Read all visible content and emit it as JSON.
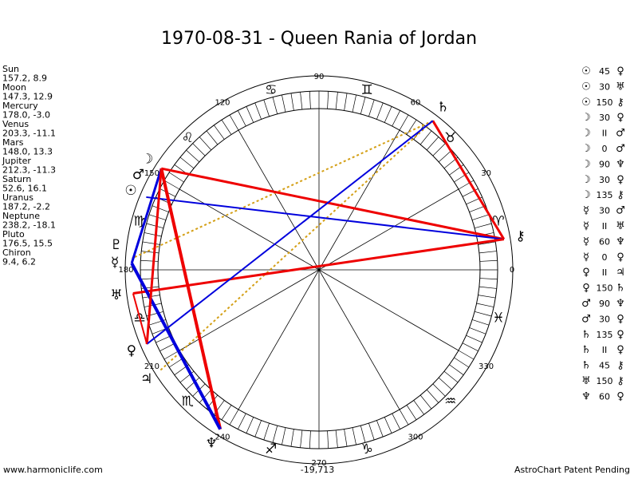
{
  "title": "1970-08-31 - Queen Rania of Jordan",
  "planets": [
    {
      "name": "Sun",
      "position": "157.2, 8.9",
      "glyph": "☉"
    },
    {
      "name": "Moon",
      "position": "147.3, 12.9",
      "glyph": "☽"
    },
    {
      "name": "Mercury",
      "position": "178.0, -3.0",
      "glyph": "☿"
    },
    {
      "name": "Venus",
      "position": "203.3, -11.1",
      "glyph": "♀"
    },
    {
      "name": "Mars",
      "position": "148.0, 13.3",
      "glyph": "♂"
    },
    {
      "name": "Jupiter",
      "position": "212.3, -11.3",
      "glyph": "♃"
    },
    {
      "name": "Saturn",
      "position": "52.6, 16.1",
      "glyph": "♄"
    },
    {
      "name": "Uranus",
      "position": "187.2, -2.2",
      "glyph": "♅"
    },
    {
      "name": "Neptune",
      "position": "238.2, -18.1",
      "glyph": "♆"
    },
    {
      "name": "Pluto",
      "position": "176.5, 15.5",
      "glyph": "♇"
    },
    {
      "name": "Chiron",
      "position": "9.4, 6.2",
      "glyph": "⚷"
    }
  ],
  "signs": [
    "♈",
    "♉",
    "♊",
    "♋",
    "♌",
    "♍",
    "♎",
    "♏",
    "♐",
    "♑",
    "♒",
    "♓"
  ],
  "degree_labels": [
    "0",
    "30",
    "60",
    "90",
    "120",
    "150",
    "180",
    "210",
    "240",
    "270",
    "300",
    "330"
  ],
  "aspects": [
    {
      "from": "☉",
      "aspect": "45",
      "to": "♀"
    },
    {
      "from": "☉",
      "aspect": "30",
      "to": "♅"
    },
    {
      "from": "☉",
      "aspect": "150",
      "to": "⚷"
    },
    {
      "from": "☽",
      "aspect": "30",
      "to": "♀"
    },
    {
      "from": "☽",
      "aspect": "II",
      "to": "♂"
    },
    {
      "from": "☽",
      "aspect": "0",
      "to": "♂"
    },
    {
      "from": "☽",
      "aspect": "90",
      "to": "♆"
    },
    {
      "from": "☽",
      "aspect": "30",
      "to": "♀"
    },
    {
      "from": "☽",
      "aspect": "135",
      "to": "⚷"
    },
    {
      "from": "☿",
      "aspect": "30",
      "to": "♂"
    },
    {
      "from": "☿",
      "aspect": "II",
      "to": "♅"
    },
    {
      "from": "☿",
      "aspect": "60",
      "to": "♆"
    },
    {
      "from": "☿",
      "aspect": "0",
      "to": "♀"
    },
    {
      "from": "♀",
      "aspect": "II",
      "to": "♃"
    },
    {
      "from": "♀",
      "aspect": "150",
      "to": "♄"
    },
    {
      "from": "♂",
      "aspect": "90",
      "to": "♆"
    },
    {
      "from": "♂",
      "aspect": "30",
      "to": "♀"
    },
    {
      "from": "♄",
      "aspect": "135",
      "to": "♀"
    },
    {
      "from": "♄",
      "aspect": "II",
      "to": "♀"
    },
    {
      "from": "♄",
      "aspect": "45",
      "to": "⚷"
    },
    {
      "from": "♅",
      "aspect": "150",
      "to": "⚷"
    },
    {
      "from": "♆",
      "aspect": "60",
      "to": "♀"
    }
  ],
  "footer": {
    "website": "www.harmoniclife.com",
    "value": "-19,713",
    "notice": "AstroChart Patent Pending"
  }
}
